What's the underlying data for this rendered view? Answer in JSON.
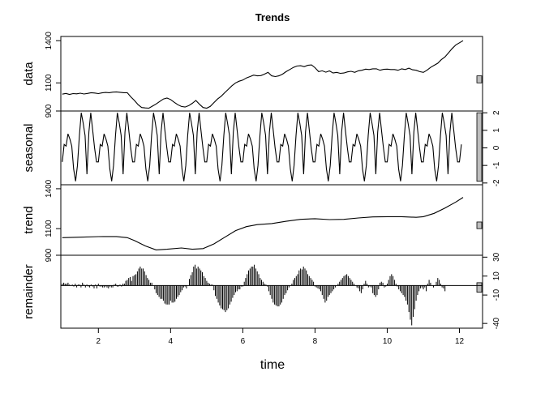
{
  "chart_data": {
    "type": "line",
    "title": "Trends",
    "xlabel": "time",
    "x_ticks": [
      "2",
      "4",
      "6",
      "8",
      "10",
      "12"
    ],
    "xlim": [
      0.96,
      12.64
    ],
    "grid": false,
    "panels": [
      {
        "label": "data",
        "ylim": [
          900,
          1430
        ],
        "y_ticks": [
          "900",
          "1100",
          "1400"
        ],
        "y_tick_side": "left",
        "scale_bar": [
          1100,
          1150
        ],
        "series": {
          "x": [
            1.0,
            1.1,
            1.2,
            1.3,
            1.4,
            1.5,
            1.6,
            1.7,
            1.8,
            1.9,
            2.0,
            2.1,
            2.2,
            2.3,
            2.4,
            2.5,
            2.6,
            2.7,
            2.8,
            2.9,
            3.0,
            3.1,
            3.2,
            3.3,
            3.4,
            3.5,
            3.6,
            3.7,
            3.8,
            3.9,
            4.0,
            4.1,
            4.2,
            4.3,
            4.4,
            4.5,
            4.6,
            4.7,
            4.8,
            4.9,
            5.0,
            5.1,
            5.2,
            5.3,
            5.4,
            5.5,
            5.6,
            5.7,
            5.8,
            5.9,
            6.0,
            6.1,
            6.2,
            6.3,
            6.4,
            6.5,
            6.6,
            6.7,
            6.8,
            6.9,
            7.0,
            7.1,
            7.2,
            7.3,
            7.4,
            7.5,
            7.6,
            7.7,
            7.8,
            7.9,
            8.0,
            8.1,
            8.2,
            8.3,
            8.4,
            8.5,
            8.6,
            8.7,
            8.8,
            8.9,
            9.0,
            9.1,
            9.2,
            9.3,
            9.4,
            9.5,
            9.6,
            9.7,
            9.8,
            9.9,
            10.0,
            10.1,
            10.2,
            10.3,
            10.4,
            10.5,
            10.6,
            10.7,
            10.8,
            10.9,
            11.0,
            11.1,
            11.2,
            11.3,
            11.4,
            11.5,
            11.6,
            11.7,
            11.8,
            11.9,
            12.0,
            12.1
          ],
          "y": [
            1020,
            1025,
            1018,
            1024,
            1022,
            1027,
            1021,
            1025,
            1030,
            1028,
            1024,
            1029,
            1032,
            1030,
            1034,
            1036,
            1033,
            1030,
            1030,
            1000,
            975,
            945,
            925,
            922,
            920,
            935,
            950,
            968,
            985,
            992,
            982,
            962,
            945,
            932,
            928,
            938,
            955,
            975,
            948,
            925,
            920,
            933,
            960,
            985,
            1005,
            1030,
            1055,
            1080,
            1100,
            1112,
            1120,
            1135,
            1145,
            1155,
            1150,
            1152,
            1162,
            1175,
            1150,
            1145,
            1150,
            1162,
            1180,
            1195,
            1210,
            1220,
            1222,
            1215,
            1225,
            1228,
            1208,
            1180,
            1186,
            1176,
            1185,
            1170,
            1175,
            1168,
            1170,
            1178,
            1182,
            1175,
            1186,
            1190,
            1198,
            1195,
            1200,
            1200,
            1190,
            1196,
            1198,
            1195,
            1195,
            1190,
            1200,
            1195,
            1205,
            1193,
            1190,
            1180,
            1175,
            1190,
            1210,
            1225,
            1240,
            1265,
            1285,
            1315,
            1345,
            1370,
            1385,
            1400
          ]
        }
      },
      {
        "label": "seasonal",
        "ylim": [
          -2.1,
          2.1
        ],
        "y_ticks": [
          "-2",
          "-1",
          "0",
          "1",
          "2"
        ],
        "y_tick_side": "right",
        "scale_bar": [
          -1.9,
          2.0
        ],
        "period": 1,
        "cycle_shape": [
          -0.8,
          0.2,
          0.1,
          0.8,
          0.5,
          0.1,
          -1.2,
          -1.9,
          -1.0,
          0.7,
          2.0,
          1.4,
          0.7,
          -1.5,
          0.9,
          2.0,
          1.0,
          0.0,
          -0.8
        ]
      },
      {
        "label": "trend",
        "ylim": [
          900,
          1430
        ],
        "y_ticks": [
          "900",
          "1100",
          "1400"
        ],
        "y_tick_side": "left",
        "scale_bar": [
          1100,
          1150
        ],
        "series": {
          "x": [
            1.0,
            1.5,
            2.0,
            2.5,
            2.8,
            3.0,
            3.3,
            3.6,
            3.9,
            4.3,
            4.6,
            4.9,
            5.2,
            5.5,
            5.8,
            6.1,
            6.4,
            6.8,
            7.2,
            7.6,
            8.0,
            8.4,
            8.8,
            9.2,
            9.6,
            10.0,
            10.4,
            10.8,
            11.0,
            11.3,
            11.6,
            11.9,
            12.1
          ],
          "y": [
            1032,
            1036,
            1040,
            1041,
            1032,
            1010,
            970,
            940,
            945,
            955,
            945,
            950,
            985,
            1035,
            1085,
            1115,
            1130,
            1138,
            1155,
            1170,
            1175,
            1168,
            1170,
            1180,
            1188,
            1190,
            1190,
            1185,
            1190,
            1215,
            1255,
            1300,
            1335
          ]
        }
      },
      {
        "label": "remainder",
        "ylim": [
          -45,
          32
        ],
        "y_ticks": [
          "-40",
          "-10",
          "10",
          "30"
        ],
        "y_tick_side": "right",
        "scale_bar": [
          -7,
          3
        ],
        "baseline": 0,
        "bars": {
          "x_start": 1.0,
          "x_step": 0.04,
          "values": [
            2,
            3,
            2,
            2,
            3,
            1,
            0,
            1,
            -1,
            2,
            -2,
            1,
            1,
            -2,
            3,
            1,
            -2,
            1,
            -1,
            -2,
            1,
            -1,
            -3,
            1,
            -3,
            2,
            -1,
            -1,
            -2,
            -2,
            -1,
            -2,
            -3,
            -1,
            -2,
            -2,
            1,
            2,
            -1,
            -1,
            1,
            -1,
            2,
            2,
            5,
            6,
            8,
            9,
            5,
            10,
            11,
            12,
            15,
            18,
            20,
            18,
            18,
            15,
            11,
            8,
            6,
            3,
            3,
            0,
            -4,
            -8,
            -10,
            -12,
            -14,
            -14,
            -16,
            -19,
            -20,
            -20,
            -20,
            -16,
            -18,
            -18,
            -17,
            -14,
            -12,
            -10,
            -7,
            -5,
            -2,
            -1,
            -3,
            0,
            7,
            11,
            14,
            20,
            22,
            18,
            20,
            18,
            16,
            14,
            10,
            8,
            5,
            3,
            2,
            1,
            1,
            -5,
            -11,
            -14,
            -18,
            -21,
            -24,
            -25,
            -26,
            -28,
            -26,
            -24,
            -20,
            -17,
            -13,
            -10,
            -7,
            -6,
            -4,
            -4,
            -1,
            -1,
            4,
            8,
            12,
            16,
            18,
            20,
            20,
            22,
            18,
            15,
            12,
            8,
            6,
            4,
            2,
            1,
            -1,
            -6,
            -10,
            -14,
            -18,
            -20,
            -21,
            -22,
            -22,
            -20,
            -18,
            -14,
            -10,
            -8,
            -5,
            -2,
            0,
            2,
            6,
            8,
            10,
            12,
            16,
            18,
            17,
            20,
            18,
            16,
            12,
            10,
            8,
            6,
            4,
            -1,
            -2,
            -3,
            -4,
            -6,
            -10,
            -14,
            -18,
            -16,
            -12,
            -10,
            -8,
            -6,
            -4,
            -2,
            0,
            2,
            4,
            6,
            8,
            10,
            11,
            12,
            10,
            8,
            6,
            4,
            2,
            0,
            -2,
            -3,
            -6,
            -8,
            -4,
            2,
            5,
            2,
            -2,
            -1,
            -2,
            -8,
            -10,
            -12,
            -10,
            -4,
            3,
            4,
            3,
            -2,
            -1,
            2,
            6,
            10,
            12,
            10,
            6,
            2,
            -1,
            -4,
            -6,
            -8,
            -10,
            -12,
            -16,
            -20,
            -28,
            -36,
            -42,
            -33,
            -25,
            -16,
            -10,
            -6,
            -3,
            -2,
            -4,
            -2,
            -6,
            2,
            6,
            3,
            0,
            -2,
            0,
            4,
            8,
            6,
            2,
            -2,
            -3,
            -6
          ]
        }
      }
    ]
  }
}
